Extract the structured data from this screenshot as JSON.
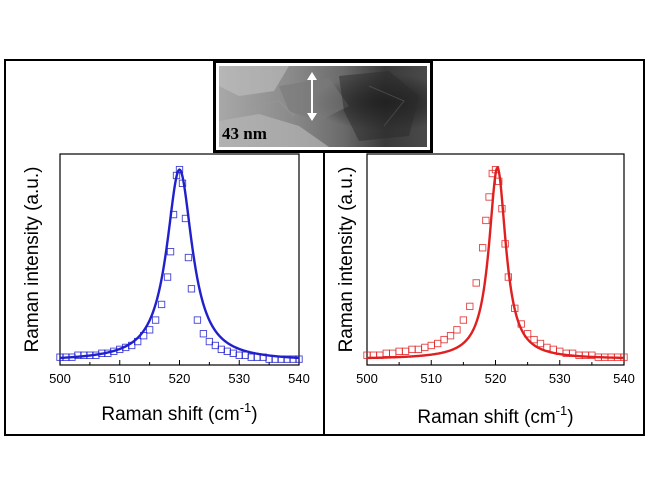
{
  "inset": {
    "label": "43 nm",
    "arrow": "double-arrow-icon"
  },
  "chart_data": [
    {
      "type": "scatter",
      "subtype": "raman-spectrum-with-fit",
      "xlabel": "Raman shift (cm",
      "xlabel_superscript": "-1",
      "xlabel_close": ")",
      "ylabel": "Raman intensity (a.u.)",
      "xlim": [
        500,
        540
      ],
      "ylim": [
        0,
        1.08
      ],
      "xticks": [
        500,
        510,
        520,
        530,
        540
      ],
      "y_ticks_labeled": false,
      "color": "#2020cc",
      "fit": {
        "name": "fit",
        "center": 520.0,
        "hwhm": 2.6,
        "amplitude": 0.98,
        "baseline": 0.02
      },
      "series": [
        {
          "name": "data",
          "marker": "square-open",
          "x": [
            500,
            501,
            502,
            503,
            504,
            505,
            506,
            507,
            508,
            509,
            510,
            511,
            512,
            513,
            514,
            515,
            516,
            517,
            518,
            518.5,
            519,
            519.5,
            520,
            520.5,
            521,
            521.5,
            522,
            523,
            524,
            525,
            526,
            527,
            528,
            529,
            530,
            531,
            532,
            533,
            534,
            535,
            536,
            537,
            538,
            539,
            540
          ],
          "y": [
            0.04,
            0.04,
            0.04,
            0.05,
            0.05,
            0.05,
            0.05,
            0.06,
            0.06,
            0.07,
            0.08,
            0.09,
            0.1,
            0.12,
            0.15,
            0.18,
            0.23,
            0.31,
            0.45,
            0.58,
            0.77,
            0.97,
            1.0,
            0.93,
            0.75,
            0.55,
            0.39,
            0.23,
            0.16,
            0.12,
            0.1,
            0.08,
            0.07,
            0.06,
            0.05,
            0.05,
            0.04,
            0.04,
            0.04,
            0.03,
            0.03,
            0.03,
            0.03,
            0.03,
            0.03
          ]
        }
      ]
    },
    {
      "type": "scatter",
      "subtype": "raman-spectrum-with-fit",
      "xlabel": "Raman shift (cm",
      "xlabel_superscript": "-1",
      "xlabel_close": ")",
      "ylabel": "Raman intensity (a.u.)",
      "xlim": [
        500,
        540
      ],
      "ylim": [
        0,
        1.08
      ],
      "xticks": [
        500,
        510,
        520,
        530,
        540
      ],
      "y_ticks_labeled": false,
      "color": "#e02020",
      "fit": {
        "name": "fit",
        "center": 520.3,
        "hwhm": 1.6,
        "amplitude": 0.98,
        "baseline": 0.03
      },
      "series": [
        {
          "name": "data",
          "marker": "square-open",
          "x": [
            500,
            501,
            502,
            503,
            504,
            505,
            506,
            507,
            508,
            509,
            510,
            511,
            512,
            513,
            514,
            515,
            516,
            517,
            518,
            518.5,
            519,
            519.5,
            520,
            520.5,
            521,
            521.5,
            522,
            523,
            524,
            525,
            526,
            527,
            528,
            529,
            530,
            531,
            532,
            533,
            534,
            535,
            536,
            537,
            538,
            539,
            540
          ],
          "y": [
            0.05,
            0.05,
            0.05,
            0.06,
            0.06,
            0.07,
            0.07,
            0.08,
            0.08,
            0.09,
            0.1,
            0.11,
            0.13,
            0.15,
            0.18,
            0.23,
            0.3,
            0.42,
            0.6,
            0.74,
            0.86,
            0.98,
            1.0,
            0.94,
            0.8,
            0.62,
            0.45,
            0.29,
            0.21,
            0.16,
            0.13,
            0.11,
            0.09,
            0.08,
            0.07,
            0.06,
            0.06,
            0.05,
            0.05,
            0.05,
            0.04,
            0.04,
            0.04,
            0.04,
            0.04
          ]
        }
      ]
    }
  ]
}
